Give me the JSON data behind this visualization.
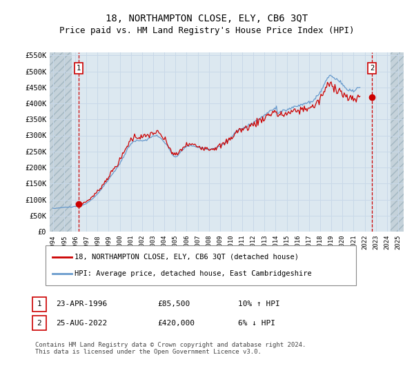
{
  "title": "18, NORTHAMPTON CLOSE, ELY, CB6 3QT",
  "subtitle": "Price paid vs. HM Land Registry's House Price Index (HPI)",
  "title_fontsize": 10,
  "subtitle_fontsize": 9,
  "ylabel_ticks": [
    "£0",
    "£50K",
    "£100K",
    "£150K",
    "£200K",
    "£250K",
    "£300K",
    "£350K",
    "£400K",
    "£450K",
    "£500K",
    "£550K"
  ],
  "ytick_vals": [
    0,
    50000,
    100000,
    150000,
    200000,
    250000,
    300000,
    350000,
    400000,
    450000,
    500000,
    550000
  ],
  "ylim": [
    0,
    560000
  ],
  "xlim_start": 1993.7,
  "xlim_end": 2025.5,
  "hatch_left_end": 1995.7,
  "hatch_right_start": 2024.3,
  "grid_color": "#c8d8e8",
  "plot_bg_color": "#dce8f0",
  "red_line_color": "#cc0000",
  "blue_line_color": "#6699cc",
  "marker1_x": 1996.31,
  "marker1_y": 85500,
  "marker2_x": 2022.65,
  "marker2_y": 420000,
  "annotation1": {
    "num": "1",
    "date": "23-APR-1996",
    "price": "£85,500",
    "hpi": "10% ↑ HPI"
  },
  "annotation2": {
    "num": "2",
    "date": "25-AUG-2022",
    "price": "£420,000",
    "hpi": "6% ↓ HPI"
  },
  "legend_line1": "18, NORTHAMPTON CLOSE, ELY, CB6 3QT (detached house)",
  "legend_line2": "HPI: Average price, detached house, East Cambridgeshire",
  "footer": "Contains HM Land Registry data © Crown copyright and database right 2024.\nThis data is licensed under the Open Government Licence v3.0.",
  "hpi_monthly": {
    "start_year": 1994.0,
    "step": 0.0833,
    "values": [
      72000,
      72300,
      72600,
      72900,
      73200,
      73500,
      73800,
      74100,
      74400,
      74700,
      75000,
      75300,
      75600,
      75800,
      76000,
      76200,
      76400,
      76600,
      76800,
      77000,
      77200,
      77400,
      77600,
      77800,
      78000,
      78500,
      79000,
      79500,
      80000,
      80600,
      81200,
      82000,
      83000,
      84000,
      85000,
      86500,
      88000,
      90000,
      92000,
      94000,
      96500,
      99000,
      101500,
      104000,
      106500,
      109000,
      112000,
      115000,
      118000,
      121000,
      124500,
      128000,
      131500,
      135000,
      139000,
      143000,
      147000,
      151000,
      155000,
      159000,
      163000,
      167000,
      171000,
      175000,
      179000,
      183000,
      187000,
      191000,
      195000,
      199000,
      203000,
      207000,
      211000,
      216000,
      221000,
      226500,
      232000,
      238000,
      244000,
      250000,
      256000,
      261000,
      266000,
      270000,
      274000,
      277000,
      280000,
      282000,
      283500,
      284500,
      285000,
      285000,
      284500,
      284000,
      283500,
      283000,
      283000,
      283500,
      284000,
      285000,
      286000,
      287500,
      289000,
      290500,
      292000,
      293500,
      295000,
      296500,
      297500,
      298500,
      299000,
      299000,
      298500,
      297500,
      296000,
      294000,
      292000,
      289000,
      286000,
      283000,
      280000,
      276000,
      272000,
      268000,
      263000,
      258000,
      253000,
      248000,
      243000,
      239000,
      236000,
      234000,
      233000,
      234000,
      236000,
      239000,
      242000,
      245500,
      249000,
      252500,
      256000,
      259000,
      261500,
      263500,
      265000,
      266000,
      267000,
      267500,
      267500,
      267000,
      266500,
      266000,
      265500,
      265000,
      264500,
      264000,
      263500,
      263000,
      262500,
      262000,
      261500,
      261000,
      260500,
      260000,
      259500,
      259000,
      258500,
      258000,
      257500,
      257500,
      257500,
      258000,
      258500,
      259000,
      260000,
      261000,
      262000,
      263000,
      264000,
      265000,
      266000,
      267500,
      269000,
      271000,
      273000,
      275000,
      277500,
      280000,
      282500,
      285000,
      287500,
      290000,
      293000,
      296000,
      299500,
      303000,
      306500,
      310000,
      313000,
      315500,
      317500,
      319000,
      320000,
      320500,
      321000,
      322000,
      323500,
      325000,
      326500,
      328000,
      330000,
      331500,
      333000,
      334500,
      336000,
      337500,
      339000,
      341000,
      343000,
      345000,
      347000,
      349000,
      351000,
      353000,
      355000,
      357000,
      359000,
      361000,
      363000,
      365000,
      367000,
      369000,
      371000,
      373000,
      375000,
      377000,
      379000,
      381000,
      383000,
      385000,
      386500,
      388000,
      369500,
      371000,
      372000,
      373000,
      374000,
      375000,
      376000,
      377000,
      378000,
      379000,
      380000,
      381000,
      382000,
      383000,
      384000,
      385000,
      386000,
      387000,
      388000,
      389000,
      390000,
      391000,
      392000,
      393000,
      394000,
      395000,
      396000,
      397000,
      398000,
      399000,
      400000,
      401000,
      402000,
      403000,
      404000,
      403500,
      404000,
      405500,
      407000,
      409000,
      411500,
      414000,
      417000,
      420000,
      424000,
      429000,
      434000,
      439000,
      445000,
      451000,
      457000,
      463000,
      469000,
      474000,
      479000,
      482000,
      484000,
      485000,
      485000,
      484000,
      482000,
      480000,
      478000,
      476000,
      474000,
      472000,
      470000,
      468000,
      465000,
      462000,
      459000,
      456000,
      453000,
      450000,
      447000,
      445000,
      443000,
      441000,
      440000,
      439000,
      439000,
      439000,
      440000,
      441000,
      443000,
      445000,
      447000,
      449000,
      451000,
      453000
    ]
  }
}
